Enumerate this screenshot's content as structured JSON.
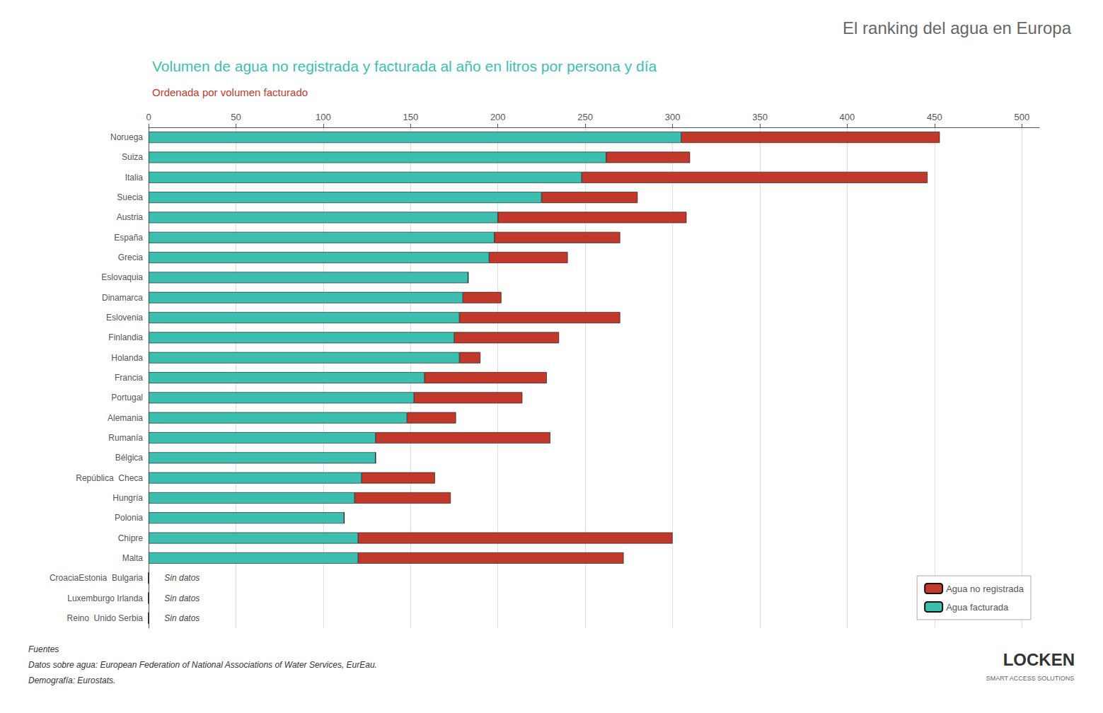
{
  "chart_data": {
    "type": "bar",
    "orientation": "horizontal",
    "stacked": true,
    "title": "El ranking del agua en Europa",
    "chart_title": "Volumen de agua no registrada y facturada al año en litros por persona y día",
    "subtitle": "Ordenada por volumen facturado",
    "categories": [
      "Noruega",
      "Suiza",
      "Italia",
      "Suecia",
      "Austria",
      "España",
      "Grecia",
      "Eslovaquia",
      "Dinamarca",
      "Eslovenia",
      "Finlandia",
      "Holanda",
      "Francia",
      "Portugal",
      "Alemania",
      "Rumanía",
      "Bélgica",
      "República  Checa",
      "Hungría",
      "Polonia",
      "Chipre",
      "Malta",
      "CroaciaEstonia  Bulgaria",
      "Luxemburgo Irlanda",
      "Reino  Unido Serbia"
    ],
    "series": [
      {
        "name": "Agua facturada",
        "color": "#3dbfb0",
        "values": [
          305,
          262,
          248,
          225,
          200,
          198,
          195,
          183,
          180,
          178,
          175,
          178,
          158,
          152,
          148,
          130,
          130,
          122,
          118,
          112,
          120,
          120,
          0,
          0,
          0
        ]
      },
      {
        "name": "Agua no registrada",
        "color": "#c0392b",
        "values": [
          148,
          48,
          198,
          55,
          108,
          72,
          45,
          0,
          22,
          92,
          60,
          12,
          70,
          62,
          28,
          100,
          0,
          42,
          55,
          0,
          180,
          152,
          0,
          0,
          0
        ]
      }
    ],
    "xlim": [
      0,
      510
    ],
    "xticks": [
      0,
      50,
      100,
      150,
      200,
      250,
      300,
      350,
      400,
      450,
      500
    ],
    "grid": true,
    "legend": "lower right",
    "annotations": [
      {
        "text": "Sin datos",
        "category": "CroaciaEstonia  Bulgaria",
        "x": 7
      },
      {
        "text": "Sin datos",
        "category": "Luxemburgo Irlanda",
        "x": 7
      },
      {
        "text": "Sin datos",
        "category": "Reino  Unido Serbia",
        "x": 7
      }
    ],
    "sources": [
      "Fuentes",
      "Datos sobre agua: European Federation of National Associations of Water Services, EurEau.",
      "Demografía: Eurostats."
    ],
    "logo": [
      "LOCKEN",
      "SMART ACCESS SOLUTIONS"
    ]
  }
}
